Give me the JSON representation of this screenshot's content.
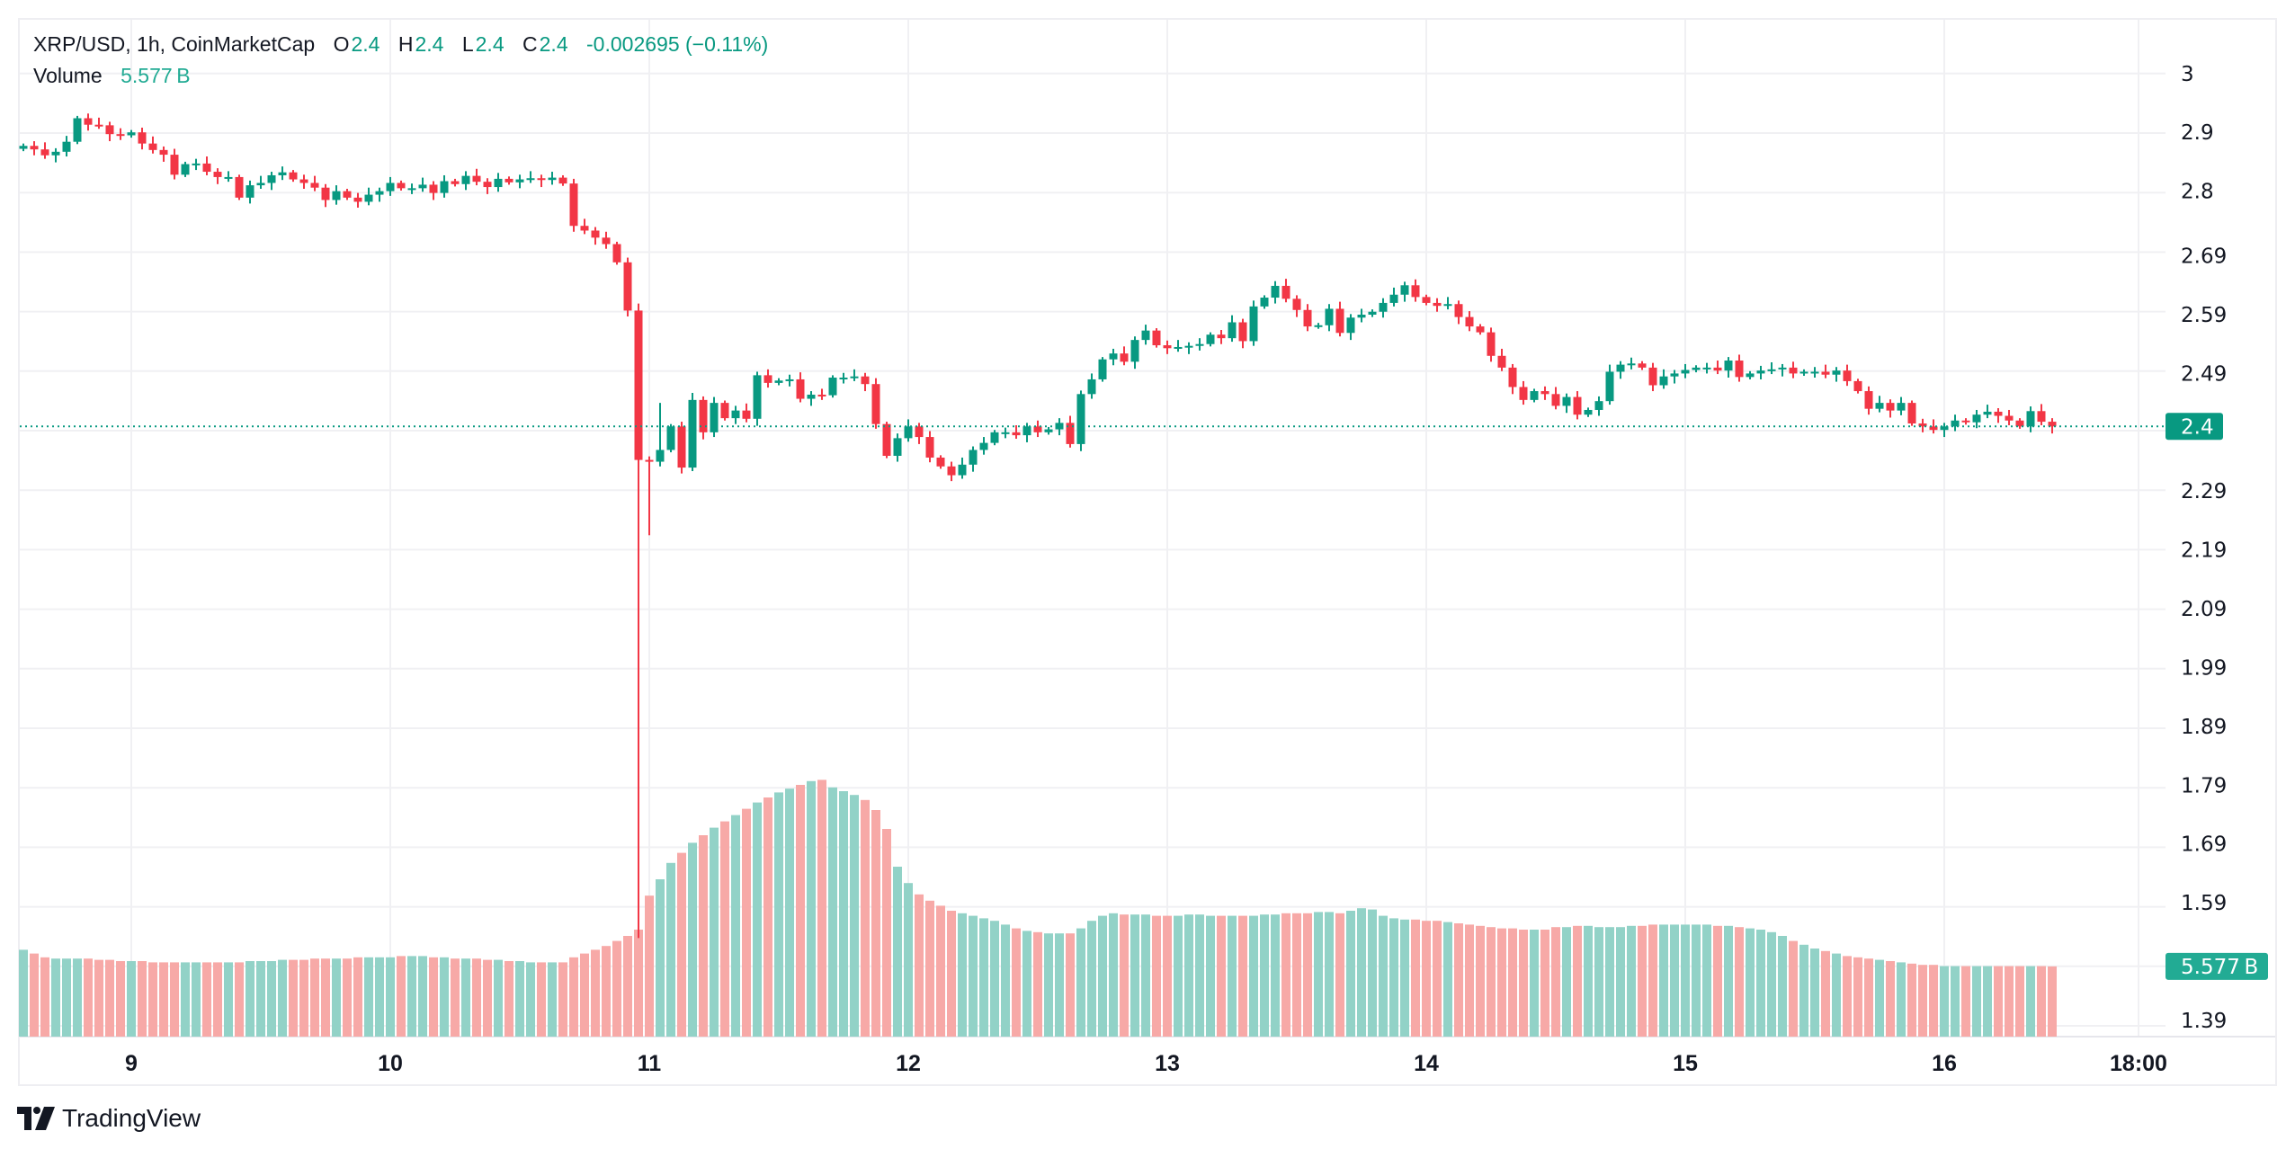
{
  "legend": {
    "symbol": "XRP/USD, 1h, CoinMarketCap",
    "open_label": "O",
    "open": "2.4",
    "high_label": "H",
    "high": "2.4",
    "low_label": "L",
    "low": "2.4",
    "close_label": "C",
    "close": "2.4",
    "change": "-0.002695 (−0.11%)",
    "volume_label": "Volume",
    "volume": "5.577 B"
  },
  "branding": {
    "name": "TradingView"
  },
  "colors": {
    "up": "#089981",
    "down": "#f23645",
    "volume_up": "#92d2c7",
    "volume_down": "#f7a9a7",
    "grid": "#f0f0f3",
    "price_badge": "#089981",
    "volume_badge": "#22ab94"
  },
  "chart_data": {
    "type": "candlestick",
    "interval": "1h",
    "x_tick_labels": [
      "9",
      "10",
      "11",
      "12",
      "13",
      "14",
      "15",
      "16",
      "18:00"
    ],
    "y_tick_labels": [
      "3",
      "2.9",
      "2.8",
      "2.69",
      "2.59",
      "2.49",
      "2.29",
      "2.19",
      "2.09",
      "1.99",
      "1.89",
      "1.79",
      "1.69",
      "1.59",
      "1.39"
    ],
    "last_price_label": "2.4",
    "last_price": 2.4,
    "last_volume_label": "5.577 B",
    "first_open": 2.872,
    "closes": [
      2.877,
      2.871,
      2.861,
      2.867,
      2.884,
      2.924,
      2.913,
      2.912,
      2.897,
      2.895,
      2.9,
      2.881,
      2.87,
      2.862,
      2.828,
      2.846,
      2.847,
      2.833,
      2.824,
      2.824,
      2.789,
      2.81,
      2.814,
      2.827,
      2.832,
      2.82,
      2.814,
      2.806,
      2.785,
      2.8,
      2.789,
      2.782,
      2.794,
      2.8,
      2.814,
      2.805,
      2.805,
      2.811,
      2.797,
      2.817,
      2.812,
      2.826,
      2.816,
      2.807,
      2.821,
      2.815,
      2.82,
      2.822,
      2.819,
      2.823,
      2.813,
      2.741,
      2.733,
      2.721,
      2.71,
      2.679,
      2.597,
      2.343,
      2.34,
      2.36,
      2.4,
      2.33,
      2.445,
      2.39,
      2.44,
      2.414,
      2.427,
      2.413,
      2.487,
      2.474,
      2.478,
      2.48,
      2.447,
      2.454,
      2.453,
      2.483,
      2.483,
      2.485,
      2.472,
      2.404,
      2.35,
      2.38,
      2.4,
      2.382,
      2.347,
      2.332,
      2.317,
      2.335,
      2.36,
      2.372,
      2.39,
      2.39,
      2.385,
      2.4,
      2.39,
      2.395,
      2.406,
      2.37,
      2.455,
      2.48,
      2.514,
      2.524,
      2.51,
      2.547,
      2.563,
      2.538,
      2.533,
      2.535,
      2.537,
      2.54,
      2.556,
      2.55,
      2.577,
      2.545,
      2.604,
      2.619,
      2.639,
      2.617,
      2.598,
      2.57,
      2.572,
      2.6,
      2.559,
      2.585,
      2.59,
      2.595,
      2.61,
      2.624,
      2.64,
      2.62,
      2.61,
      2.605,
      2.608,
      2.586,
      2.57,
      2.56,
      2.52,
      2.5,
      2.467,
      2.445,
      2.46,
      2.455,
      2.435,
      2.45,
      2.42,
      2.428,
      2.443,
      2.493,
      2.505,
      2.507,
      2.5,
      2.47,
      2.485,
      2.49,
      2.496,
      2.5,
      2.5,
      2.495,
      2.512,
      2.484,
      2.49,
      2.495,
      2.497,
      2.5,
      2.49,
      2.493,
      2.493,
      2.488,
      2.495,
      2.477,
      2.46,
      2.43,
      2.44,
      2.427,
      2.44,
      2.405,
      2.4,
      2.394,
      2.4,
      2.41,
      2.407,
      2.42,
      2.425,
      2.418,
      2.41,
      2.4,
      2.426,
      2.408,
      2.4
    ],
    "wick_extremes": [
      {
        "candle": 57,
        "low": 1.53
      },
      {
        "candle": 58,
        "low": 2.215
      },
      {
        "candle": 59,
        "high": 2.44
      }
    ],
    "volume_unit": "B",
    "volumes": [
      6.9,
      6.6,
      6.3,
      6.2,
      6.2,
      6.2,
      6.2,
      6.1,
      6.1,
      6.0,
      6.0,
      6.0,
      5.9,
      5.9,
      5.9,
      5.9,
      5.9,
      5.9,
      5.9,
      5.9,
      5.9,
      6.0,
      6.0,
      6.0,
      6.1,
      6.1,
      6.1,
      6.2,
      6.2,
      6.2,
      6.2,
      6.3,
      6.3,
      6.3,
      6.3,
      6.4,
      6.4,
      6.4,
      6.3,
      6.3,
      6.2,
      6.2,
      6.2,
      6.1,
      6.1,
      6.0,
      6.0,
      5.9,
      5.9,
      5.9,
      5.9,
      6.3,
      6.6,
      6.9,
      7.2,
      7.6,
      8.0,
      8.5,
      11.2,
      12.5,
      13.8,
      14.6,
      15.4,
      16.0,
      16.6,
      17.1,
      17.6,
      18.1,
      18.6,
      19.0,
      19.4,
      19.7,
      20.0,
      20.3,
      20.4,
      19.8,
      19.5,
      19.2,
      18.8,
      18.0,
      16.5,
      13.5,
      12.2,
      11.3,
      10.8,
      10.4,
      10.0,
      9.8,
      9.6,
      9.4,
      9.2,
      8.9,
      8.6,
      8.4,
      8.3,
      8.2,
      8.2,
      8.2,
      8.6,
      9.2,
      9.6,
      9.8,
      9.7,
      9.7,
      9.7,
      9.6,
      9.6,
      9.6,
      9.7,
      9.7,
      9.6,
      9.6,
      9.6,
      9.6,
      9.6,
      9.7,
      9.7,
      9.8,
      9.8,
      9.8,
      9.9,
      9.9,
      9.8,
      10.0,
      10.2,
      10.1,
      9.6,
      9.4,
      9.3,
      9.3,
      9.2,
      9.2,
      9.1,
      9.0,
      8.9,
      8.8,
      8.7,
      8.6,
      8.6,
      8.5,
      8.5,
      8.5,
      8.7,
      8.7,
      8.8,
      8.8,
      8.7,
      8.7,
      8.7,
      8.8,
      8.8,
      8.9,
      8.9,
      8.9,
      8.9,
      8.9,
      8.9,
      8.8,
      8.8,
      8.7,
      8.6,
      8.5,
      8.3,
      8.0,
      7.6,
      7.3,
      7.0,
      6.8,
      6.6,
      6.4,
      6.3,
      6.2,
      6.1,
      6.0,
      5.9,
      5.8,
      5.7,
      5.7,
      5.6,
      5.6,
      5.6,
      5.6,
      5.6,
      5.6,
      5.6,
      5.6,
      5.6,
      5.6,
      5.577
    ],
    "grid": true,
    "price_axis": "right"
  }
}
